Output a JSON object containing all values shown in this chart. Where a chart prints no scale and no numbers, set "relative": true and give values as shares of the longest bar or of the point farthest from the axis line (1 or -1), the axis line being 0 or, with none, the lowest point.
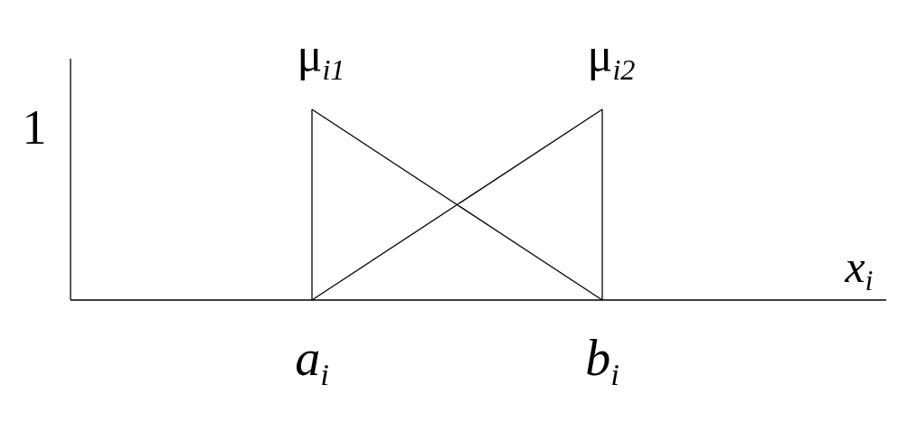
{
  "chart_data": {
    "type": "line",
    "relative": true,
    "categories": [
      "a$_{i}$",
      "b$_{i}$"
    ],
    "xlabel": "x$_{i}$",
    "series": [
      {
        "name": "μ$_{i1}$",
        "color": "#000000",
        "values": [
          1,
          0
        ]
      },
      {
        "name": "μ$_{i2}$",
        "color": "#000000",
        "values": [
          0,
          1
        ]
      }
    ],
    "ref_lines": [
      {
        "axis": "x",
        "value": "a$_{i}$",
        "color": "#000000"
      },
      {
        "axis": "x",
        "value": "b$_{i}$",
        "color": "#000000"
      }
    ],
    "annotations": [
      "1"
    ],
    "marker": "none",
    "line_style": "solid"
  }
}
